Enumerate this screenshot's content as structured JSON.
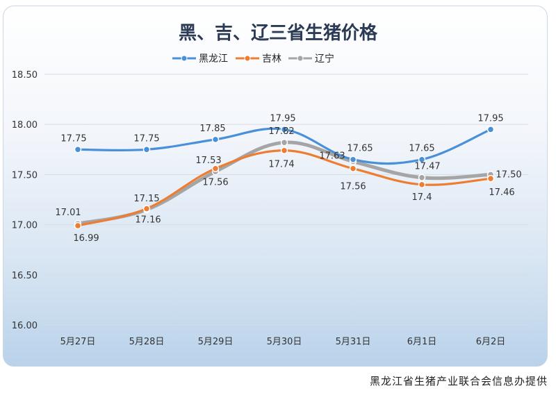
{
  "chart_data": {
    "type": "line",
    "title": "黑、吉、辽三省生猪价格",
    "categories": [
      "5月27日",
      "5月28日",
      "5月29日",
      "5月30日",
      "5月31日",
      "6月1日",
      "6月2日"
    ],
    "yticks": [
      "16.00",
      "16.50",
      "17.00",
      "17.50",
      "18.00",
      "18.50"
    ],
    "ylim": [
      16.0,
      18.5
    ],
    "grid": true,
    "legend_position": "top-center",
    "series": [
      {
        "name": "黑龙江",
        "color": "#4a90d9",
        "values": [
          17.75,
          17.75,
          17.85,
          17.95,
          17.65,
          17.65,
          17.95
        ],
        "labels": [
          "17.75",
          "17.75",
          "17.85",
          "17.95",
          "17.65",
          "17.65",
          "17.95"
        ]
      },
      {
        "name": "吉林",
        "color": "#ed7d31",
        "values": [
          16.99,
          17.16,
          17.56,
          17.74,
          17.56,
          17.4,
          17.46
        ],
        "labels": [
          "16.99",
          "17.16",
          "17.56",
          "17.74",
          "17.56",
          "17.4",
          "17.46"
        ]
      },
      {
        "name": "辽宁",
        "color": "#a5a5a5",
        "values": [
          17.01,
          17.15,
          17.53,
          17.82,
          17.63,
          17.47,
          17.5
        ],
        "labels": [
          "17.01",
          "17.15",
          "17.53",
          "17.82",
          "17.63",
          "17.47",
          "17.50"
        ]
      }
    ]
  },
  "credit": "黑龙江省生猪产业联合会信息办提供"
}
